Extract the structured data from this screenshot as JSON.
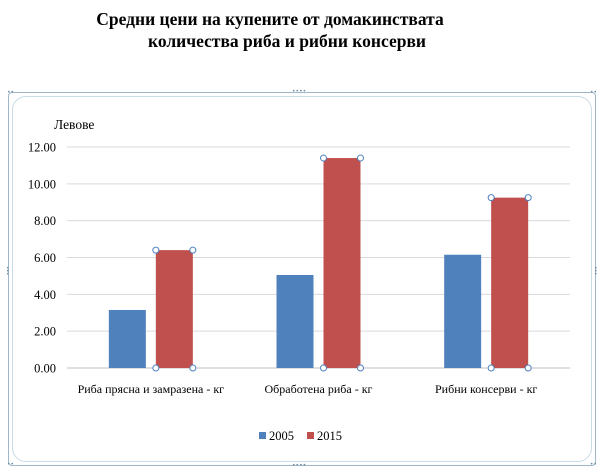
{
  "title": {
    "line1": "Средни цени на купените от домакинствата",
    "line2": "количества риба и рибни консерви"
  },
  "colors": {
    "series_2005": "#4f81bd",
    "series_2015": "#c0504d",
    "grid": "#d9d9d9",
    "frame": "#9fb7c8",
    "handle": "#4f81bd"
  },
  "chart_data": {
    "type": "bar",
    "title": "Средни цени на купените от домакинствата количества риба и рибни консерви",
    "xlabel": "",
    "ylabel": "Левове",
    "categories": [
      "Риба прясна и замразена - кг",
      "Обработена риба - кг",
      "Рибни консерви - кг"
    ],
    "series": [
      {
        "name": "2005",
        "values": [
          3.15,
          5.05,
          6.15
        ]
      },
      {
        "name": "2015",
        "values": [
          6.4,
          11.4,
          9.25
        ]
      }
    ],
    "ylim": [
      0,
      12
    ],
    "yticks": [
      "0.00",
      "2.00",
      "4.00",
      "6.00",
      "8.00",
      "10.00",
      "12.00"
    ],
    "grid": true,
    "legend_position": "bottom",
    "selected_series": "2015"
  }
}
